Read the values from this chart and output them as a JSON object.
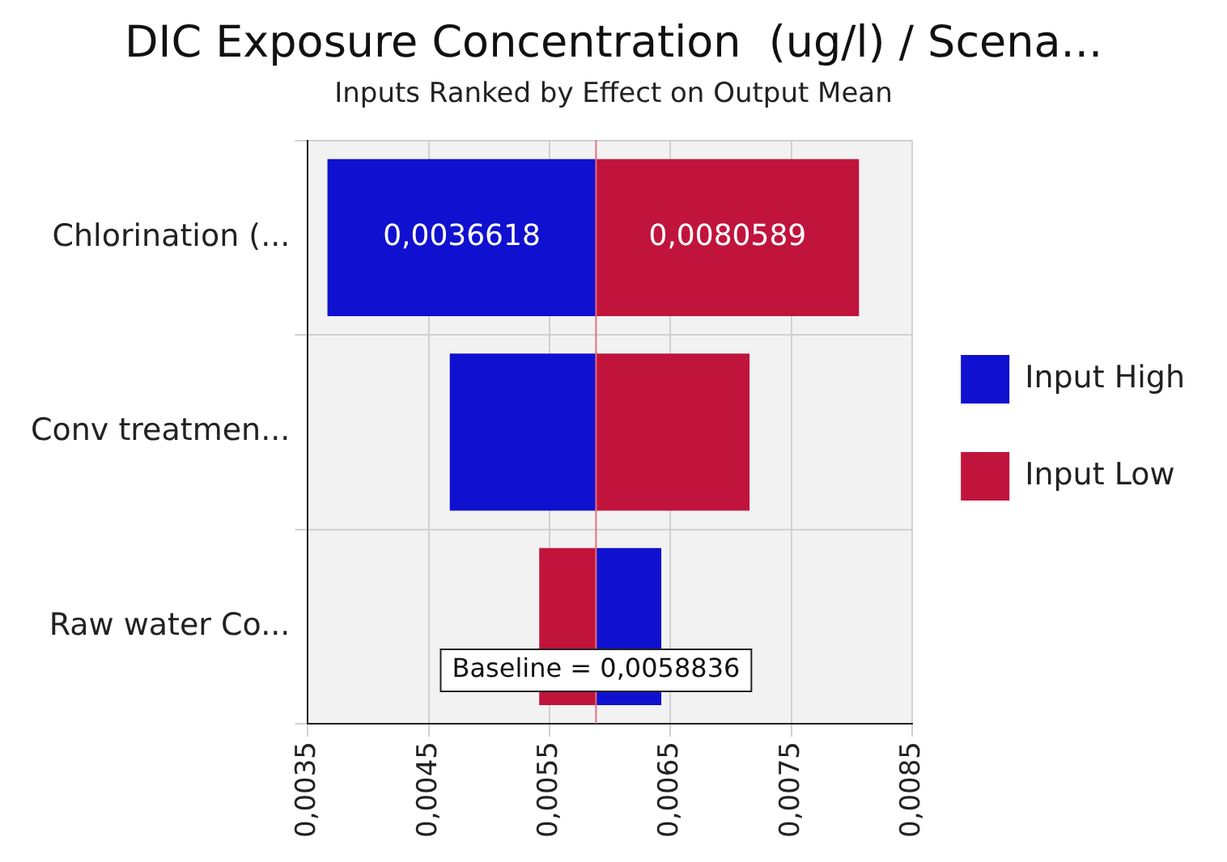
{
  "chart_data": {
    "type": "bar",
    "orientation": "horizontal",
    "title": "DIC Exposure Concentration  (ug/l) / Scena...",
    "subtitle": "Inputs Ranked by Effect on Output Mean",
    "categories": [
      "Chlorination (...",
      "Conv treatmen...",
      "Raw water Co..."
    ],
    "series": [
      {
        "name": "Input High",
        "color": "#1010d0",
        "base": [
          0.0058836,
          0.0058836,
          0.0058836
        ],
        "values": [
          -0.0022218,
          -0.00121,
          0.00054
        ],
        "value_labels": [
          "0,0036618",
          null,
          null
        ]
      },
      {
        "name": "Input Low",
        "color": "#c0143c",
        "base": [
          0.0058836,
          0.0058836,
          0.0058836
        ],
        "values": [
          0.0021753,
          0.00127,
          -0.00047
        ],
        "value_labels": [
          "0,0080589",
          null,
          null
        ]
      }
    ],
    "xlim": [
      0.0035,
      0.0085
    ],
    "xticks": [
      {
        "value": 0.0035,
        "label": "0,0035"
      },
      {
        "value": 0.0045,
        "label": "0,0045"
      },
      {
        "value": 0.0055,
        "label": "0,0055"
      },
      {
        "value": 0.0065,
        "label": "0,0065"
      },
      {
        "value": 0.0075,
        "label": "0,0075"
      },
      {
        "value": 0.0085,
        "label": "0,0085"
      }
    ],
    "ref_lines": [
      {
        "axis": "x",
        "value": 0.0058836,
        "label": "Baseline = 0,0058836",
        "color": "#e07080"
      }
    ],
    "grid": true,
    "legend": "right"
  }
}
